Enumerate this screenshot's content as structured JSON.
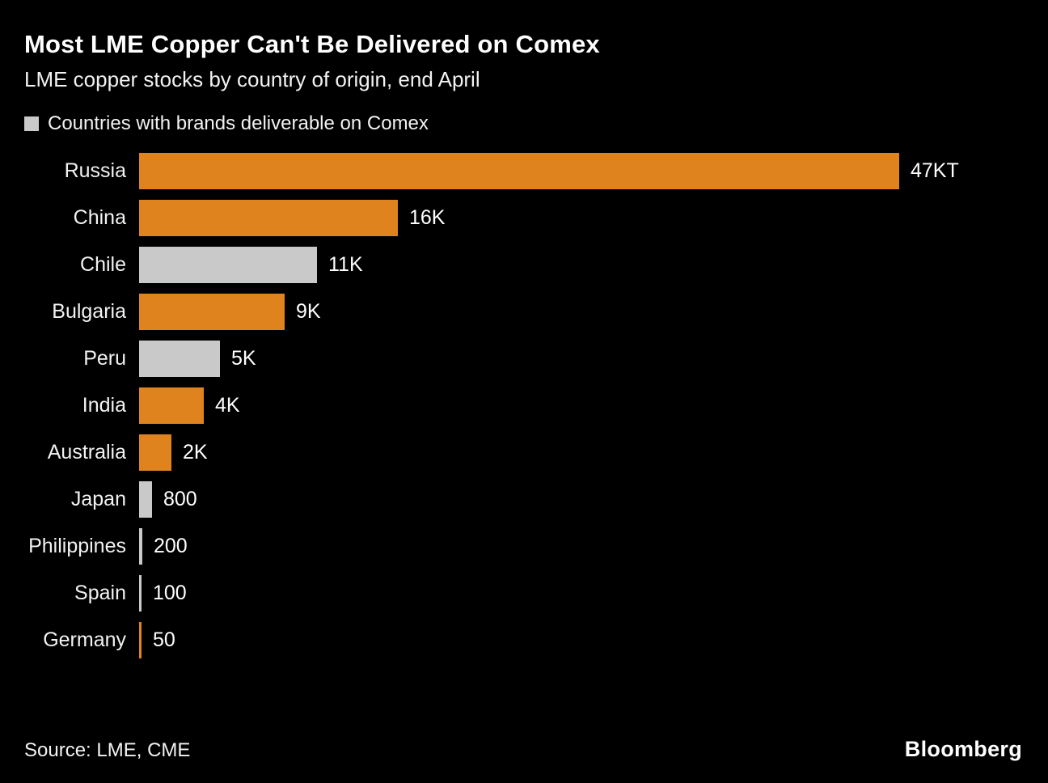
{
  "header": {
    "title": "Most LME Copper Can't Be Delivered on Comex",
    "subtitle": "LME copper stocks by country of origin, end April"
  },
  "legend": {
    "label": "Countries with brands deliverable on Comex"
  },
  "footer": {
    "source": "Source: LME, CME",
    "brand": "Bloomberg"
  },
  "colors": {
    "background": "#000000",
    "orange": "#df831f",
    "gray": "#c9c9c9",
    "text": "#ffffff"
  },
  "chart_data": {
    "type": "bar",
    "orientation": "horizontal",
    "title": "Most LME Copper Can't Be Delivered on Comex",
    "subtitle": "LME copper stocks by country of origin, end April",
    "legend": [
      {
        "label": "Countries with brands deliverable on Comex",
        "color": "gray"
      }
    ],
    "xlim": [
      0,
      47000
    ],
    "grid": false,
    "bars": [
      {
        "category": "Russia",
        "value": 47000,
        "label": "47KT",
        "deliverable_on_comex": false,
        "color": "orange"
      },
      {
        "category": "China",
        "value": 16000,
        "label": "16K",
        "deliverable_on_comex": false,
        "color": "orange"
      },
      {
        "category": "Chile",
        "value": 11000,
        "label": "11K",
        "deliverable_on_comex": true,
        "color": "gray"
      },
      {
        "category": "Bulgaria",
        "value": 9000,
        "label": "9K",
        "deliverable_on_comex": false,
        "color": "orange"
      },
      {
        "category": "Peru",
        "value": 5000,
        "label": "5K",
        "deliverable_on_comex": true,
        "color": "gray"
      },
      {
        "category": "India",
        "value": 4000,
        "label": "4K",
        "deliverable_on_comex": false,
        "color": "orange"
      },
      {
        "category": "Australia",
        "value": 2000,
        "label": "2K",
        "deliverable_on_comex": false,
        "color": "orange"
      },
      {
        "category": "Japan",
        "value": 800,
        "label": "800",
        "deliverable_on_comex": true,
        "color": "gray"
      },
      {
        "category": "Philippines",
        "value": 200,
        "label": "200",
        "deliverable_on_comex": true,
        "color": "gray"
      },
      {
        "category": "Spain",
        "value": 100,
        "label": "100",
        "deliverable_on_comex": true,
        "color": "gray"
      },
      {
        "category": "Germany",
        "value": 50,
        "label": "50",
        "deliverable_on_comex": false,
        "color": "orange"
      }
    ]
  }
}
